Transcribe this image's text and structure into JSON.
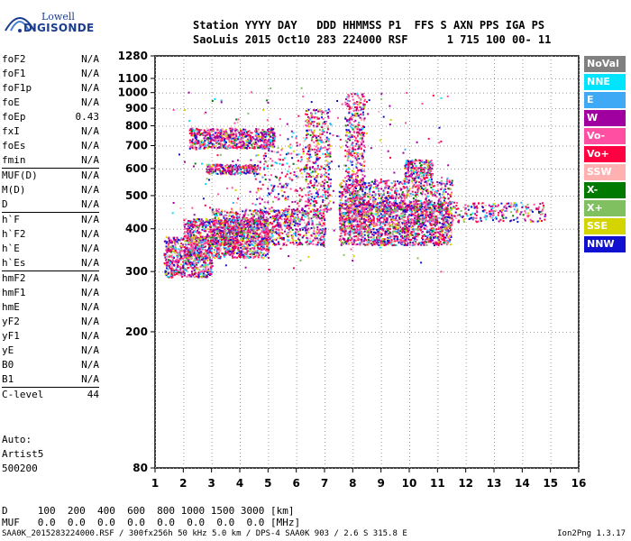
{
  "logo": {
    "line1": "Lowell",
    "line2": "DIGISONDE"
  },
  "header": {
    "line1": "Station YYYY DAY   DDD HHMMSS P1  FFS S AXN PPS IGA PS",
    "line2": "SaoLuis 2015 Oct10 283 224000 RSF      1 715 100 00- 11"
  },
  "params": {
    "group1": [
      {
        "k": "foF2",
        "v": "N/A"
      },
      {
        "k": "foF1",
        "v": "N/A"
      },
      {
        "k": "foF1p",
        "v": "N/A"
      },
      {
        "k": "foE",
        "v": "N/A"
      },
      {
        "k": "foEp",
        "v": "0.43"
      },
      {
        "k": "fxI",
        "v": "N/A"
      },
      {
        "k": "foEs",
        "v": "N/A"
      },
      {
        "k": "fmin",
        "v": "N/A"
      }
    ],
    "group2": [
      {
        "k": "MUF(D)",
        "v": "N/A"
      },
      {
        "k": "M(D)",
        "v": "N/A"
      },
      {
        "k": "D",
        "v": "N/A"
      }
    ],
    "group3": [
      {
        "k": "h`F",
        "v": "N/A"
      },
      {
        "k": "h`F2",
        "v": "N/A"
      },
      {
        "k": "h`E",
        "v": "N/A"
      },
      {
        "k": "h`Es",
        "v": "N/A"
      }
    ],
    "group4": [
      {
        "k": "hmF2",
        "v": "N/A"
      },
      {
        "k": "hmF1",
        "v": "N/A"
      },
      {
        "k": "hmE",
        "v": "N/A"
      },
      {
        "k": "yF2",
        "v": "N/A"
      },
      {
        "k": "yF1",
        "v": "N/A"
      },
      {
        "k": "yE",
        "v": "N/A"
      },
      {
        "k": "B0",
        "v": "N/A"
      },
      {
        "k": "B1",
        "v": "N/A"
      }
    ],
    "group5": [
      {
        "k": "C-level",
        "v": "44"
      }
    ]
  },
  "auto": {
    "line1": "Auto:",
    "line2": "Artist5",
    "line3": "500200"
  },
  "bottom": {
    "d_line": "D     100  200  400  600  800 1000 1500 3000 [km]",
    "muf_line": "MUF   0.0  0.0  0.0  0.0  0.0  0.0  0.0  0.0 [MHz]"
  },
  "footer": {
    "left": "SAA0K_2015283224000.RSF / 300fx256h 50 kHz 5.0 km / DPS-4 SAA0K 903 / 2.6 S 315.8 E",
    "right": "Ion2Png 1.3.17"
  },
  "legend": [
    {
      "label": "NoVal",
      "color": "#808080"
    },
    {
      "label": "NNE",
      "color": "#00e5ff"
    },
    {
      "label": "E",
      "color": "#3fa9f5"
    },
    {
      "label": "W",
      "color": "#a000a0"
    },
    {
      "label": "Vo-",
      "color": "#ff4fa3"
    },
    {
      "label": "Vo+",
      "color": "#ff0040"
    },
    {
      "label": "SSW",
      "color": "#ffb0b0"
    },
    {
      "label": "X-",
      "color": "#007a00"
    },
    {
      "label": "X+",
      "color": "#80c060"
    },
    {
      "label": "SSE",
      "color": "#d4d400"
    },
    {
      "label": "NNW",
      "color": "#1010d0"
    }
  ],
  "chart_data": {
    "type": "scatter",
    "xlim": [
      1,
      16
    ],
    "ylim": [
      80,
      1280
    ],
    "x_ticks": [
      1,
      2,
      3,
      4,
      5,
      6,
      7,
      8,
      9,
      10,
      11,
      12,
      13,
      14,
      15,
      16
    ],
    "y_ticks": [
      80,
      200,
      300,
      400,
      500,
      600,
      700,
      800,
      900,
      1000,
      1100,
      1280
    ],
    "y_scale": "log",
    "clusters": [
      {
        "x": [
          1.3,
          3.0
        ],
        "y": [
          290,
          380
        ],
        "n": 650
      },
      {
        "x": [
          2.0,
          5.0
        ],
        "y": [
          330,
          430
        ],
        "n": 1100
      },
      {
        "x": [
          3.0,
          7.0
        ],
        "y": [
          360,
          460
        ],
        "n": 900
      },
      {
        "x": [
          7.5,
          11.5
        ],
        "y": [
          360,
          480
        ],
        "n": 1700
      },
      {
        "x": [
          7.5,
          11.5
        ],
        "y": [
          450,
          560
        ],
        "n": 700
      },
      {
        "x": [
          11.5,
          14.8
        ],
        "y": [
          420,
          480
        ],
        "n": 220
      },
      {
        "x": [
          2.2,
          5.2
        ],
        "y": [
          690,
          790
        ],
        "n": 700
      },
      {
        "x": [
          2.8,
          4.6
        ],
        "y": [
          580,
          620
        ],
        "n": 240
      },
      {
        "x": [
          6.3,
          7.2
        ],
        "y": [
          450,
          900
        ],
        "n": 380
      },
      {
        "x": [
          7.7,
          8.4
        ],
        "y": [
          450,
          1000
        ],
        "n": 420
      },
      {
        "x": [
          9.8,
          10.8
        ],
        "y": [
          560,
          640
        ],
        "n": 200
      },
      {
        "x": [
          4.5,
          6.5
        ],
        "y": [
          420,
          760
        ],
        "n": 260
      },
      {
        "x": [
          1.5,
          11.5
        ],
        "y": [
          300,
          1050
        ],
        "n": 220
      }
    ]
  }
}
